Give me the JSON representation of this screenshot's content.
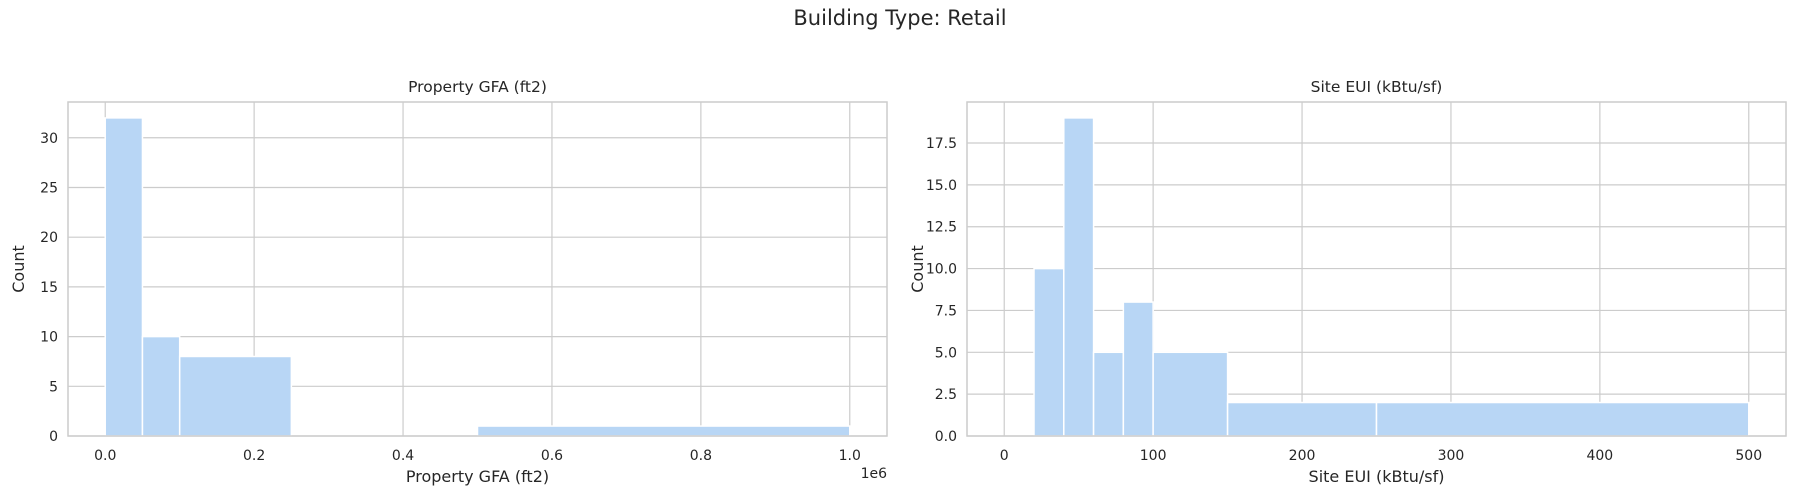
{
  "suptitle": "Building Type: Retail",
  "colors": {
    "bar": "#b8d6f5",
    "grid": "#cccccc",
    "axes_edge": "#cccccc",
    "text": "#262626"
  },
  "chart_data": [
    {
      "type": "bar",
      "title": "Property GFA (ft2)",
      "xlabel": "Property GFA (ft2)",
      "ylabel": "Count",
      "offset_label": "1e6",
      "xlim": [
        -0.05,
        1.05
      ],
      "ylim": [
        0,
        33.6
      ],
      "xticks": [
        0.0,
        0.2,
        0.4,
        0.6,
        0.8,
        1.0
      ],
      "xtick_labels": [
        "0.0",
        "0.2",
        "0.4",
        "0.6",
        "0.8",
        "1.0"
      ],
      "yticks": [
        0,
        5,
        10,
        15,
        20,
        25,
        30
      ],
      "ytick_labels": [
        "0",
        "5",
        "10",
        "15",
        "20",
        "25",
        "30"
      ],
      "bins": [
        {
          "x0": 0.0,
          "x1": 0.05,
          "count": 32
        },
        {
          "x0": 0.05,
          "x1": 0.1,
          "count": 10
        },
        {
          "x0": 0.1,
          "x1": 0.25,
          "count": 8
        },
        {
          "x0": 0.25,
          "x1": 0.5,
          "count": 0
        },
        {
          "x0": 0.5,
          "x1": 1.0,
          "count": 1
        }
      ],
      "grid": true
    },
    {
      "type": "bar",
      "title": "Site EUI (kBtu/sf)",
      "xlabel": "Site EUI (kBtu/sf)",
      "ylabel": "Count",
      "xlim": [
        -25,
        525
      ],
      "ylim": [
        0,
        19.95
      ],
      "xticks": [
        0,
        100,
        200,
        300,
        400,
        500
      ],
      "xtick_labels": [
        "0",
        "100",
        "200",
        "300",
        "400",
        "500"
      ],
      "yticks": [
        0,
        2.5,
        5,
        7.5,
        10,
        12.5,
        15,
        17.5
      ],
      "ytick_labels": [
        "0.0",
        "2.5",
        "5.0",
        "7.5",
        "10.0",
        "12.5",
        "15.0",
        "17.5"
      ],
      "bins": [
        {
          "x0": 0,
          "x1": 20,
          "count": 0
        },
        {
          "x0": 20,
          "x1": 40,
          "count": 10
        },
        {
          "x0": 40,
          "x1": 60,
          "count": 19
        },
        {
          "x0": 60,
          "x1": 80,
          "count": 5
        },
        {
          "x0": 80,
          "x1": 100,
          "count": 8
        },
        {
          "x0": 100,
          "x1": 150,
          "count": 5
        },
        {
          "x0": 150,
          "x1": 250,
          "count": 2
        },
        {
          "x0": 250,
          "x1": 500,
          "count": 2
        }
      ],
      "grid": true
    }
  ]
}
